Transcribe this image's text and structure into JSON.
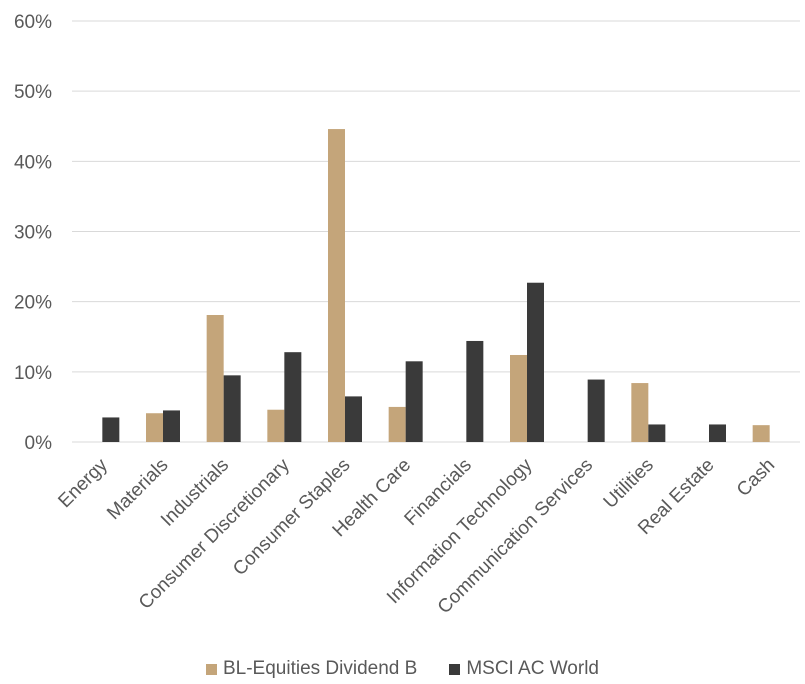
{
  "chart_data": {
    "type": "bar",
    "categories": [
      "Energy",
      "Materials",
      "Industrials",
      "Consumer Discretionary",
      "Consumer Staples",
      "Health Care",
      "Financials",
      "Information Technology",
      "Communication Services",
      "Utilities",
      "Real Estate",
      "Cash"
    ],
    "series": [
      {
        "name": "BL-Equities Dividend B",
        "color": "#c4a57a",
        "values": [
          0,
          4.1,
          18.1,
          4.6,
          44.6,
          5.0,
          0,
          12.4,
          0,
          8.4,
          0,
          2.4
        ]
      },
      {
        "name": "MSCI AC World",
        "color": "#3a3a3a",
        "values": [
          3.5,
          4.5,
          9.5,
          12.8,
          6.5,
          11.5,
          14.4,
          22.7,
          8.9,
          2.5,
          2.5,
          0
        ]
      }
    ],
    "ylim": [
      0,
      60
    ],
    "yticks": [
      "0%",
      "10%",
      "20%",
      "30%",
      "40%",
      "50%",
      "60%"
    ],
    "grid": true,
    "legend_position": "bottom"
  }
}
